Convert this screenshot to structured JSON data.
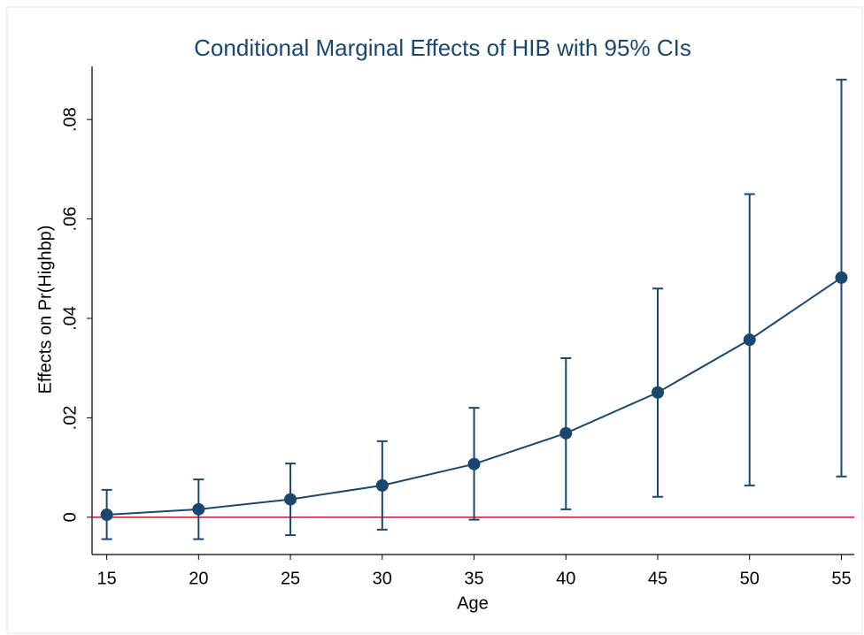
{
  "chart_data": {
    "type": "errorbar_line",
    "title": "Conditional Marginal Effects of HIB with 95% CIs",
    "x_label": "Age",
    "y_label": "Effects on Pr(Highbp)",
    "x": [
      15,
      20,
      25,
      30,
      35,
      40,
      45,
      50,
      55
    ],
    "series": [
      {
        "name": "Effect",
        "color": "#1a476f",
        "values": [
          0.0005,
          0.0016,
          0.0036,
          0.0064,
          0.0107,
          0.0169,
          0.0251,
          0.0357,
          0.0482
        ],
        "lower": [
          -0.0044,
          -0.0044,
          -0.0036,
          -0.0025,
          -0.0005,
          0.0016,
          0.0041,
          0.0064,
          0.0082
        ],
        "upper": [
          0.0055,
          0.0076,
          0.0108,
          0.0153,
          0.022,
          0.032,
          0.046,
          0.065,
          0.088
        ]
      }
    ],
    "xlim": [
      14.2,
      55.7
    ],
    "xticks": [
      15,
      20,
      25,
      30,
      35,
      40,
      45,
      50,
      55
    ],
    "ylim": [
      -0.0075,
      0.0907
    ],
    "yticks": [
      0,
      {
        "value": 0.02,
        "label": ".02"
      },
      {
        "value": 0.04,
        "label": ".04"
      },
      {
        "value": 0.06,
        "label": ".06"
      },
      {
        "value": 0.08,
        "label": ".08"
      }
    ],
    "reference_line": {
      "value": 0,
      "color": "#c8102e"
    },
    "grid": false
  }
}
